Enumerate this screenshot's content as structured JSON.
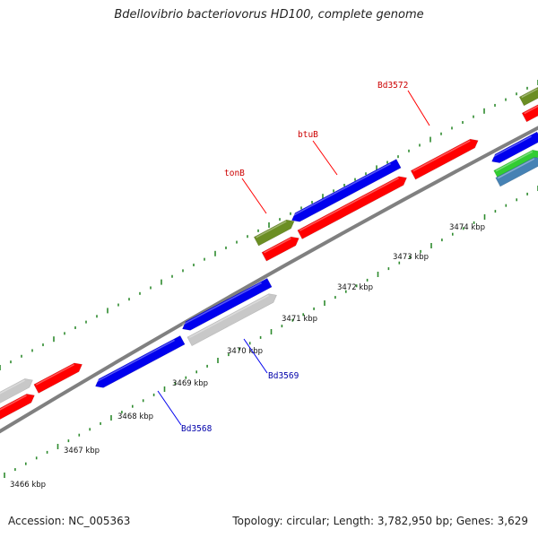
{
  "title": "Bdellovibrio bacteriovorus HD100, complete genome",
  "footer": {
    "accession": "Accession: NC_005363",
    "summary": "Topology: circular; Length: 3,782,950 bp; Genes: 3,629"
  },
  "colors": {
    "forward_default": "#ff0000",
    "reverse_default": "#0000ee",
    "hypothetical": "#c8c8c8",
    "other_a": "#6b8e23",
    "other_b": "#32cd32",
    "other_c": "#4682b4",
    "backbone": "#808080",
    "ticks": "#2e8b2e",
    "forward_label": "#cc0000",
    "reverse_label": "#0000aa"
  },
  "ruler": {
    "unit": "kbp",
    "labels": [
      {
        "kbp": 3466,
        "text": "3466 kbp"
      },
      {
        "kbp": 3467,
        "text": "3467 kbp"
      },
      {
        "kbp": 3468,
        "text": "3468 kbp"
      },
      {
        "kbp": 3469,
        "text": "3469 kbp"
      },
      {
        "kbp": 3470,
        "text": "3470 kbp"
      },
      {
        "kbp": 3471,
        "text": "3471 kbp"
      },
      {
        "kbp": 3472,
        "text": "3472 kbp"
      },
      {
        "kbp": 3473,
        "text": "3473 kbp"
      },
      {
        "kbp": 3474,
        "text": "3474 kbp"
      }
    ]
  },
  "gene_labels": {
    "forward": [
      {
        "name": "tonB",
        "text": "tonB"
      },
      {
        "name": "btuB",
        "text": "btuB"
      },
      {
        "name": "bd3572",
        "text": "Bd3572"
      }
    ],
    "reverse": [
      {
        "name": "bd3568",
        "text": "Bd3568"
      },
      {
        "name": "bd3569",
        "text": "Bd3569"
      }
    ]
  }
}
